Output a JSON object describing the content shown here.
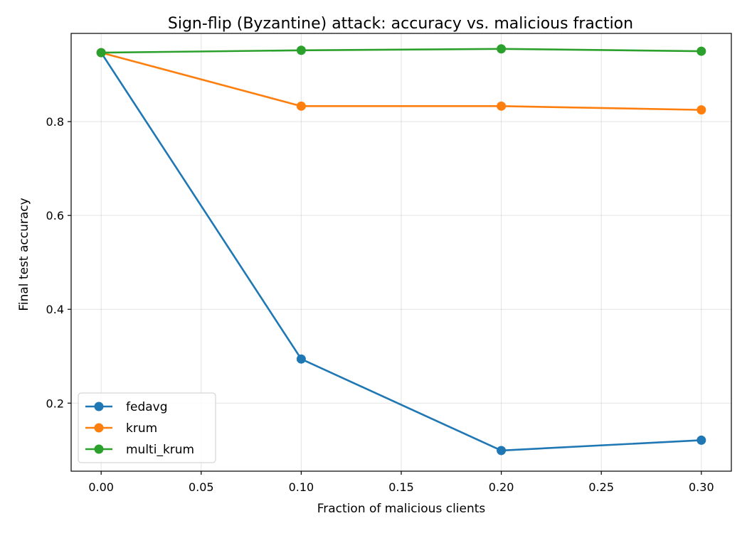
{
  "chart_data": {
    "type": "line",
    "title": "Sign-flip (Byzantine) attack: accuracy vs. malicious fraction",
    "xlabel": "Fraction of malicious clients",
    "ylabel": "Final test accuracy",
    "x": [
      0.0,
      0.1,
      0.2,
      0.3
    ],
    "xlim": [
      -0.015,
      0.315
    ],
    "ylim": [
      0.055,
      0.988
    ],
    "xticks": [
      0.0,
      0.05,
      0.1,
      0.15,
      0.2,
      0.25,
      0.3
    ],
    "xtick_labels": [
      "0.00",
      "0.05",
      "0.10",
      "0.15",
      "0.20",
      "0.25",
      "0.30"
    ],
    "yticks": [
      0.2,
      0.4,
      0.6,
      0.8
    ],
    "ytick_labels": [
      "0.2",
      "0.4",
      "0.6",
      "0.8"
    ],
    "grid": true,
    "legend_position": "lower-left",
    "series": [
      {
        "name": "fedavg",
        "color": "#1f77b4",
        "values": [
          0.947,
          0.294,
          0.099,
          0.121
        ]
      },
      {
        "name": "krum",
        "color": "#ff7f0e",
        "values": [
          0.947,
          0.833,
          0.833,
          0.825
        ]
      },
      {
        "name": "multi_krum",
        "color": "#2ca02c",
        "values": [
          0.947,
          0.952,
          0.955,
          0.95
        ]
      }
    ]
  }
}
